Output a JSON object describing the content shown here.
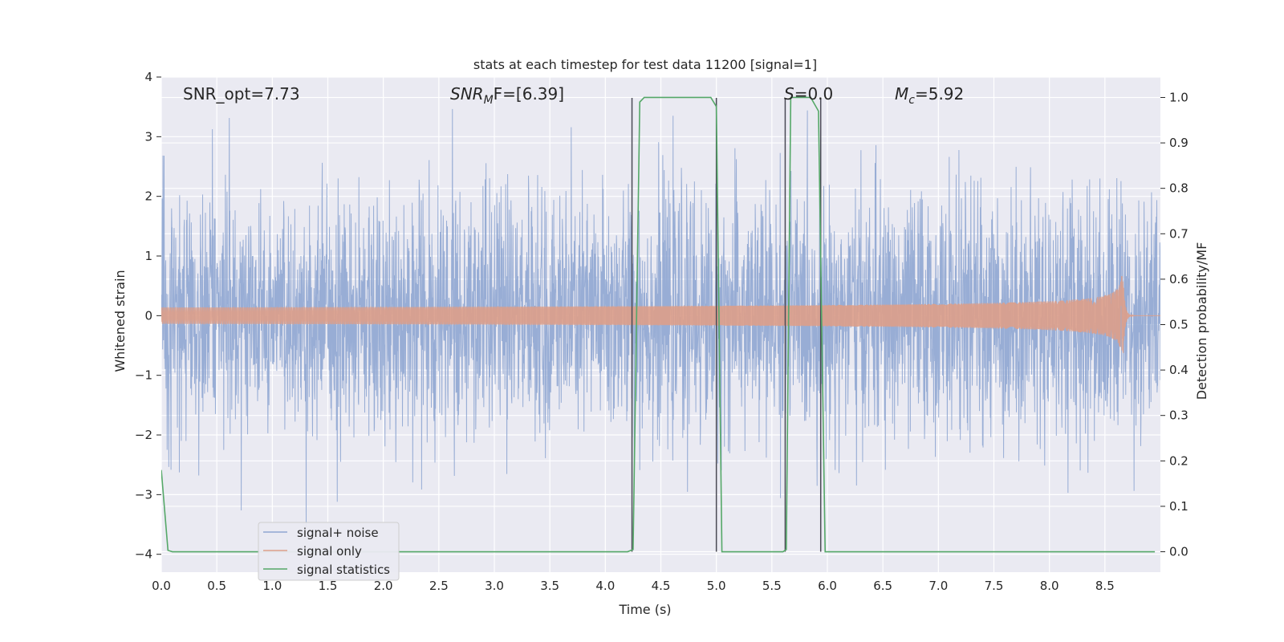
{
  "chart_data": {
    "type": "line",
    "title": "stats at each timestep for test data 11200 [signal=1]",
    "xlabel": "Time (s)",
    "ylabel": "Whitened strain",
    "ylabel_right": "Detection probability/MF",
    "xlim": [
      0.0,
      9.0
    ],
    "ylim": [
      -4.3,
      4.0
    ],
    "ylim_right": [
      -0.045,
      1.045
    ],
    "x_ticks": [
      "0.0",
      "0.5",
      "1.0",
      "1.5",
      "2.0",
      "2.5",
      "3.0",
      "3.5",
      "4.0",
      "4.5",
      "5.0",
      "5.5",
      "6.0",
      "6.5",
      "7.0",
      "7.5",
      "8.0",
      "8.5"
    ],
    "y_ticks": [
      "4",
      "3",
      "2",
      "1",
      "0",
      "−1",
      "−2",
      "−3",
      "−4"
    ],
    "y_ticks_right": [
      "1.0",
      "0.9",
      "0.8",
      "0.7",
      "0.6",
      "0.5",
      "0.4",
      "0.3",
      "0.2",
      "0.1",
      "0.0"
    ],
    "grid": true,
    "legend_position": "lower-left",
    "annotations": [
      {
        "name": "snr-opt",
        "text": "SNR_opt=7.73"
      },
      {
        "name": "snr-mf",
        "text": "SNR",
        "sub": "M",
        "rest": "F=[6.39]"
      },
      {
        "name": "s-value",
        "text": "S",
        "rest": "=0.0"
      },
      {
        "name": "chirp-mass",
        "text": "M",
        "sub": "c",
        "rest": "=5.92"
      }
    ],
    "series": [
      {
        "name": "signal+ noise",
        "color": "#8fa6d1",
        "axis": "left",
        "description": "whitened strain noise spanning roughly -4 to 3.6 across 0-9 s",
        "x_range": [
          0.0,
          9.0
        ],
        "amplitude": 1.0,
        "peaks": [
          3.6,
          -4.0
        ]
      },
      {
        "name": "signal only",
        "color": "#dd9f8a",
        "axis": "left",
        "description": "chirp signal growing in amplitude to merger near 8.66 s",
        "merger_time": 8.66,
        "peak_amplitude": 0.85
      },
      {
        "name": "signal statistics",
        "color": "#55a868",
        "axis": "right",
        "x": [
          0.0,
          0.06,
          0.1,
          4.2,
          4.25,
          4.31,
          4.35,
          4.95,
          5.0,
          5.05,
          5.6,
          5.63,
          5.67,
          5.85,
          5.92,
          5.98,
          8.95
        ],
        "values": [
          0.18,
          0.003,
          0.0,
          0.0,
          0.005,
          0.99,
          1.0,
          1.0,
          0.98,
          0.0,
          0.0,
          0.005,
          1.0,
          1.0,
          0.97,
          0.0,
          0.0
        ]
      }
    ],
    "vertical_markers": [
      {
        "x": 4.24,
        "y_top": 3.65
      },
      {
        "x": 5.0,
        "y_top": 3.65
      },
      {
        "x": 5.62,
        "y_top": 3.65
      },
      {
        "x": 5.94,
        "y_top": 3.65
      }
    ]
  }
}
